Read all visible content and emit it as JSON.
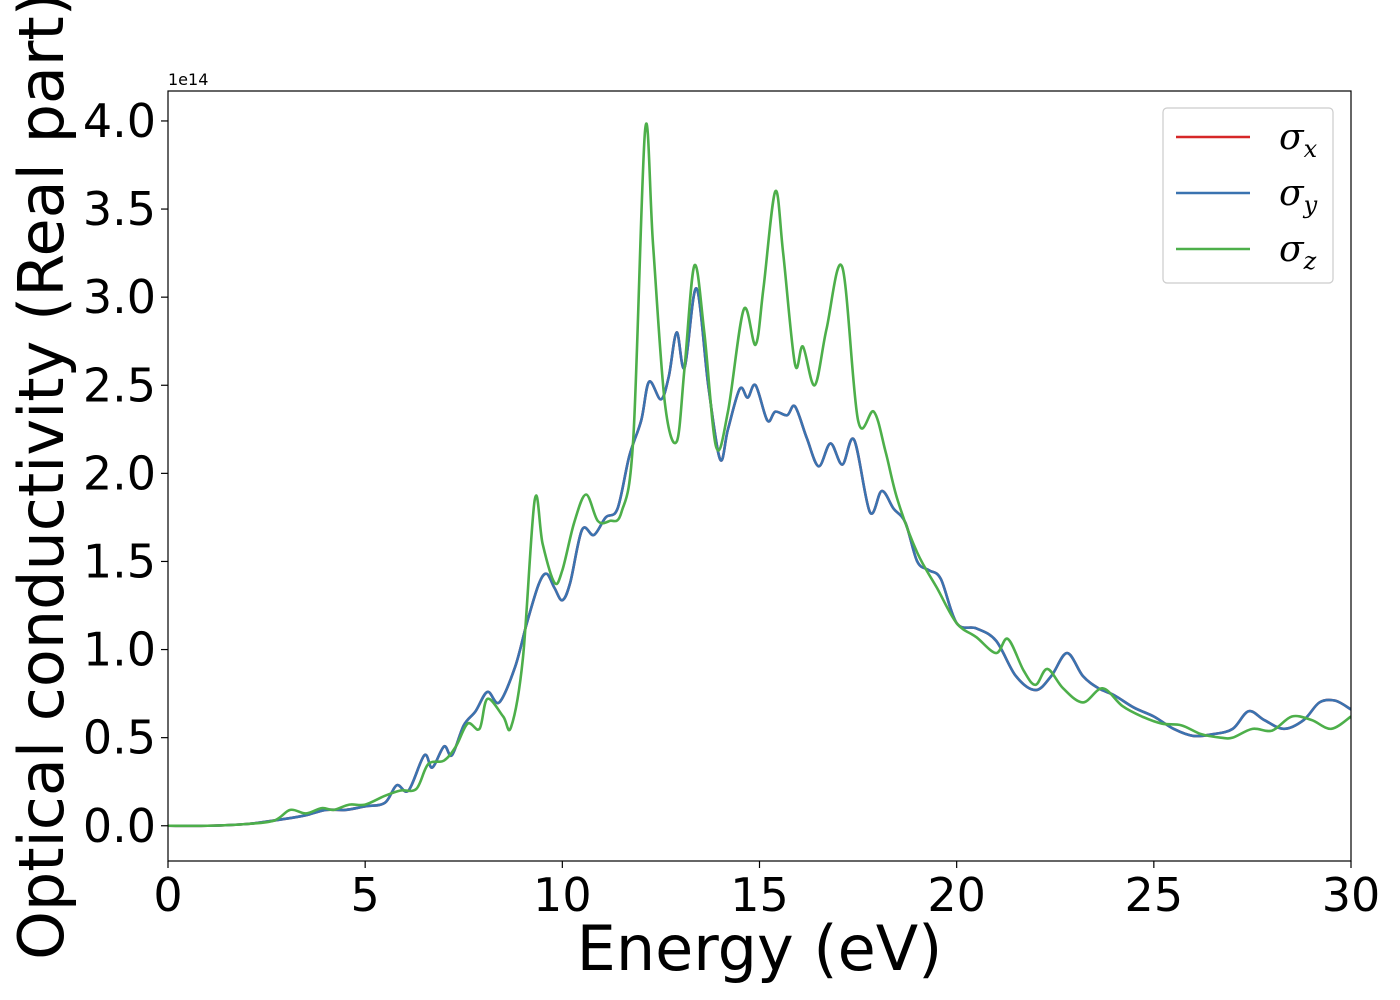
{
  "chart_data": {
    "type": "line",
    "xlabel": "Energy (eV)",
    "ylabel": "Optical conductivity (Real part)",
    "y_offset_label": "1e14",
    "y_scale_multiplier": 100000000000000.0,
    "xlim": [
      0,
      30
    ],
    "ylim": [
      -0.2,
      4.17
    ],
    "xticks": [
      0,
      5,
      10,
      15,
      20,
      25,
      30
    ],
    "xtick_labels": [
      "0",
      "5",
      "10",
      "15",
      "20",
      "25",
      "30"
    ],
    "yticks": [
      0.0,
      0.5,
      1.0,
      1.5,
      2.0,
      2.5,
      3.0,
      3.5,
      4.0
    ],
    "ytick_labels": [
      "0.0",
      "0.5",
      "1.0",
      "1.5",
      "2.0",
      "2.5",
      "3.0",
      "3.5",
      "4.0"
    ],
    "grid": false,
    "legend_position": "top-right",
    "series": [
      {
        "name": "σx",
        "symbol": "σ",
        "subscript": "x",
        "color": "#d62728",
        "points": [
          [
            0,
            0
          ],
          [
            1,
            0
          ],
          [
            2,
            0.01
          ],
          [
            3,
            0.04
          ],
          [
            3.5,
            0.06
          ],
          [
            4,
            0.09
          ],
          [
            4.5,
            0.09
          ],
          [
            5,
            0.11
          ],
          [
            5.5,
            0.13
          ],
          [
            5.8,
            0.23
          ],
          [
            6.1,
            0.2
          ],
          [
            6.5,
            0.4
          ],
          [
            6.7,
            0.33
          ],
          [
            7,
            0.45
          ],
          [
            7.2,
            0.4
          ],
          [
            7.5,
            0.57
          ],
          [
            7.8,
            0.65
          ],
          [
            8.1,
            0.76
          ],
          [
            8.4,
            0.7
          ],
          [
            8.8,
            0.9
          ],
          [
            9.1,
            1.15
          ],
          [
            9.4,
            1.37
          ],
          [
            9.6,
            1.43
          ],
          [
            9.8,
            1.35
          ],
          [
            10,
            1.28
          ],
          [
            10.2,
            1.38
          ],
          [
            10.5,
            1.68
          ],
          [
            10.8,
            1.65
          ],
          [
            11.1,
            1.75
          ],
          [
            11.4,
            1.8
          ],
          [
            11.7,
            2.1
          ],
          [
            12,
            2.3
          ],
          [
            12.2,
            2.52
          ],
          [
            12.5,
            2.42
          ],
          [
            12.7,
            2.55
          ],
          [
            12.9,
            2.8
          ],
          [
            13.1,
            2.6
          ],
          [
            13.4,
            3.05
          ],
          [
            13.7,
            2.5
          ],
          [
            14,
            2.08
          ],
          [
            14.2,
            2.25
          ],
          [
            14.5,
            2.48
          ],
          [
            14.7,
            2.43
          ],
          [
            14.9,
            2.5
          ],
          [
            15.2,
            2.3
          ],
          [
            15.4,
            2.35
          ],
          [
            15.7,
            2.33
          ],
          [
            15.9,
            2.38
          ],
          [
            16.2,
            2.2
          ],
          [
            16.5,
            2.04
          ],
          [
            16.8,
            2.17
          ],
          [
            17.1,
            2.05
          ],
          [
            17.4,
            2.19
          ],
          [
            17.8,
            1.78
          ],
          [
            18.1,
            1.9
          ],
          [
            18.4,
            1.8
          ],
          [
            18.7,
            1.72
          ],
          [
            19,
            1.5
          ],
          [
            19.3,
            1.45
          ],
          [
            19.6,
            1.4
          ],
          [
            20,
            1.15
          ],
          [
            20.5,
            1.12
          ],
          [
            21,
            1.05
          ],
          [
            21.5,
            0.85
          ],
          [
            22,
            0.77
          ],
          [
            22.4,
            0.85
          ],
          [
            22.8,
            0.98
          ],
          [
            23.2,
            0.85
          ],
          [
            23.6,
            0.78
          ],
          [
            24,
            0.74
          ],
          [
            24.5,
            0.67
          ],
          [
            25,
            0.62
          ],
          [
            25.5,
            0.55
          ],
          [
            26,
            0.51
          ],
          [
            26.5,
            0.52
          ],
          [
            27,
            0.55
          ],
          [
            27.4,
            0.65
          ],
          [
            27.8,
            0.6
          ],
          [
            28.3,
            0.55
          ],
          [
            28.8,
            0.6
          ],
          [
            29.2,
            0.7
          ],
          [
            29.6,
            0.71
          ],
          [
            30,
            0.66
          ]
        ]
      },
      {
        "name": "σy",
        "symbol": "σ",
        "subscript": "y",
        "color": "#3a73b0",
        "points": [
          [
            0,
            0
          ],
          [
            1,
            0
          ],
          [
            2,
            0.01
          ],
          [
            3,
            0.04
          ],
          [
            3.5,
            0.06
          ],
          [
            4,
            0.09
          ],
          [
            4.5,
            0.09
          ],
          [
            5,
            0.11
          ],
          [
            5.5,
            0.13
          ],
          [
            5.8,
            0.23
          ],
          [
            6.1,
            0.2
          ],
          [
            6.5,
            0.4
          ],
          [
            6.7,
            0.33
          ],
          [
            7,
            0.45
          ],
          [
            7.2,
            0.4
          ],
          [
            7.5,
            0.57
          ],
          [
            7.8,
            0.65
          ],
          [
            8.1,
            0.76
          ],
          [
            8.4,
            0.7
          ],
          [
            8.8,
            0.9
          ],
          [
            9.1,
            1.15
          ],
          [
            9.4,
            1.37
          ],
          [
            9.6,
            1.43
          ],
          [
            9.8,
            1.35
          ],
          [
            10,
            1.28
          ],
          [
            10.2,
            1.38
          ],
          [
            10.5,
            1.68
          ],
          [
            10.8,
            1.65
          ],
          [
            11.1,
            1.75
          ],
          [
            11.4,
            1.8
          ],
          [
            11.7,
            2.1
          ],
          [
            12,
            2.3
          ],
          [
            12.2,
            2.52
          ],
          [
            12.5,
            2.42
          ],
          [
            12.7,
            2.55
          ],
          [
            12.9,
            2.8
          ],
          [
            13.1,
            2.6
          ],
          [
            13.4,
            3.05
          ],
          [
            13.7,
            2.5
          ],
          [
            14,
            2.08
          ],
          [
            14.2,
            2.25
          ],
          [
            14.5,
            2.48
          ],
          [
            14.7,
            2.43
          ],
          [
            14.9,
            2.5
          ],
          [
            15.2,
            2.3
          ],
          [
            15.4,
            2.35
          ],
          [
            15.7,
            2.33
          ],
          [
            15.9,
            2.38
          ],
          [
            16.2,
            2.2
          ],
          [
            16.5,
            2.04
          ],
          [
            16.8,
            2.17
          ],
          [
            17.1,
            2.05
          ],
          [
            17.4,
            2.19
          ],
          [
            17.8,
            1.78
          ],
          [
            18.1,
            1.9
          ],
          [
            18.4,
            1.8
          ],
          [
            18.7,
            1.72
          ],
          [
            19,
            1.5
          ],
          [
            19.3,
            1.45
          ],
          [
            19.6,
            1.4
          ],
          [
            20,
            1.15
          ],
          [
            20.5,
            1.12
          ],
          [
            21,
            1.05
          ],
          [
            21.5,
            0.85
          ],
          [
            22,
            0.77
          ],
          [
            22.4,
            0.85
          ],
          [
            22.8,
            0.98
          ],
          [
            23.2,
            0.85
          ],
          [
            23.6,
            0.78
          ],
          [
            24,
            0.74
          ],
          [
            24.5,
            0.67
          ],
          [
            25,
            0.62
          ],
          [
            25.5,
            0.55
          ],
          [
            26,
            0.51
          ],
          [
            26.5,
            0.52
          ],
          [
            27,
            0.55
          ],
          [
            27.4,
            0.65
          ],
          [
            27.8,
            0.6
          ],
          [
            28.3,
            0.55
          ],
          [
            28.8,
            0.6
          ],
          [
            29.2,
            0.7
          ],
          [
            29.6,
            0.71
          ],
          [
            30,
            0.66
          ]
        ]
      },
      {
        "name": "σz",
        "symbol": "σ",
        "subscript": "z",
        "color": "#4daf4a",
        "points": [
          [
            0,
            0
          ],
          [
            1,
            0
          ],
          [
            2,
            0.01
          ],
          [
            2.7,
            0.03
          ],
          [
            3.1,
            0.09
          ],
          [
            3.5,
            0.07
          ],
          [
            3.9,
            0.1
          ],
          [
            4.2,
            0.09
          ],
          [
            4.6,
            0.12
          ],
          [
            5,
            0.12
          ],
          [
            5.5,
            0.17
          ],
          [
            5.9,
            0.2
          ],
          [
            6.3,
            0.21
          ],
          [
            6.6,
            0.35
          ],
          [
            7,
            0.37
          ],
          [
            7.3,
            0.45
          ],
          [
            7.6,
            0.58
          ],
          [
            7.9,
            0.55
          ],
          [
            8.1,
            0.72
          ],
          [
            8.5,
            0.62
          ],
          [
            8.7,
            0.56
          ],
          [
            9,
            0.95
          ],
          [
            9.3,
            1.85
          ],
          [
            9.5,
            1.6
          ],
          [
            9.8,
            1.38
          ],
          [
            10,
            1.45
          ],
          [
            10.3,
            1.72
          ],
          [
            10.6,
            1.88
          ],
          [
            10.9,
            1.73
          ],
          [
            11.2,
            1.73
          ],
          [
            11.5,
            1.78
          ],
          [
            11.8,
            2.2
          ],
          [
            12.1,
            3.95
          ],
          [
            12.3,
            3.3
          ],
          [
            12.6,
            2.4
          ],
          [
            12.9,
            2.18
          ],
          [
            13.1,
            2.6
          ],
          [
            13.35,
            3.18
          ],
          [
            13.6,
            2.8
          ],
          [
            13.9,
            2.15
          ],
          [
            14.2,
            2.35
          ],
          [
            14.6,
            2.93
          ],
          [
            14.9,
            2.73
          ],
          [
            15.1,
            3.05
          ],
          [
            15.4,
            3.6
          ],
          [
            15.6,
            3.25
          ],
          [
            15.9,
            2.62
          ],
          [
            16.1,
            2.72
          ],
          [
            16.4,
            2.5
          ],
          [
            16.7,
            2.82
          ],
          [
            17.1,
            3.17
          ],
          [
            17.5,
            2.3
          ],
          [
            17.9,
            2.35
          ],
          [
            18.2,
            2.12
          ],
          [
            18.5,
            1.85
          ],
          [
            19,
            1.55
          ],
          [
            19.5,
            1.35
          ],
          [
            20,
            1.15
          ],
          [
            20.5,
            1.07
          ],
          [
            21,
            0.98
          ],
          [
            21.3,
            1.06
          ],
          [
            21.7,
            0.88
          ],
          [
            22,
            0.8
          ],
          [
            22.3,
            0.89
          ],
          [
            22.7,
            0.78
          ],
          [
            23.2,
            0.7
          ],
          [
            23.7,
            0.78
          ],
          [
            24.2,
            0.68
          ],
          [
            24.7,
            0.62
          ],
          [
            25.2,
            0.58
          ],
          [
            25.7,
            0.57
          ],
          [
            26.2,
            0.52
          ],
          [
            26.7,
            0.5
          ],
          [
            27,
            0.5
          ],
          [
            27.5,
            0.55
          ],
          [
            28,
            0.54
          ],
          [
            28.5,
            0.62
          ],
          [
            29,
            0.6
          ],
          [
            29.5,
            0.55
          ],
          [
            30,
            0.62
          ]
        ]
      }
    ]
  }
}
